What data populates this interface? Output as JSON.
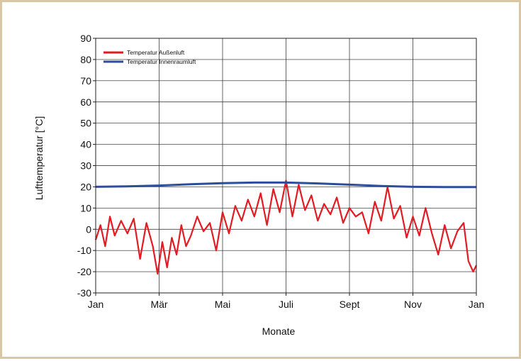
{
  "chart_data": {
    "type": "line",
    "xlabel": "Monate",
    "ylabel": "Lufttemperatur [°C]",
    "ylim": [
      -30,
      90
    ],
    "yticks": [
      -30,
      -20,
      -10,
      0,
      10,
      20,
      30,
      40,
      50,
      60,
      70,
      80,
      90
    ],
    "xlim": [
      0,
      12
    ],
    "month_ticks": [
      {
        "label": "Jan",
        "month": 0
      },
      {
        "label": "Mär",
        "month": 2
      },
      {
        "label": "Mai",
        "month": 4
      },
      {
        "label": "Juli",
        "month": 6
      },
      {
        "label": "Sept",
        "month": 8
      },
      {
        "label": "Nov",
        "month": 10
      },
      {
        "label": "Jan",
        "month": 12
      }
    ],
    "grid": true,
    "legend_position": "top-left",
    "series": [
      {
        "name": "Temperatur Außenluft",
        "color": "#e31b23",
        "x": [
          0,
          0.15,
          0.3,
          0.45,
          0.6,
          0.8,
          1.0,
          1.2,
          1.4,
          1.6,
          1.8,
          1.95,
          2.1,
          2.25,
          2.4,
          2.55,
          2.7,
          2.85,
          3.0,
          3.2,
          3.4,
          3.6,
          3.8,
          4.0,
          4.2,
          4.4,
          4.6,
          4.8,
          5.0,
          5.2,
          5.4,
          5.6,
          5.8,
          6.0,
          6.2,
          6.4,
          6.6,
          6.8,
          7.0,
          7.2,
          7.4,
          7.6,
          7.8,
          8.0,
          8.2,
          8.4,
          8.6,
          8.8,
          9.0,
          9.2,
          9.4,
          9.6,
          9.8,
          10.0,
          10.2,
          10.4,
          10.6,
          10.8,
          11.0,
          11.2,
          11.4,
          11.6,
          11.75,
          11.9,
          12.0
        ],
        "y": [
          -5,
          2,
          -8,
          6,
          -3,
          4,
          -2,
          5,
          -14,
          3,
          -8,
          -21,
          -6,
          -18,
          -4,
          -12,
          2,
          -8,
          -3,
          6,
          -1,
          3,
          -10,
          8,
          -2,
          11,
          4,
          14,
          6,
          17,
          2,
          19,
          8,
          23,
          6,
          21,
          9,
          16,
          4,
          12,
          7,
          15,
          3,
          10,
          6,
          8,
          -2,
          13,
          4,
          20,
          5,
          11,
          -4,
          6,
          -3,
          10,
          -2,
          -12,
          2,
          -9,
          -1,
          3,
          -15,
          -20,
          -17
        ]
      },
      {
        "name": "Temperatur Innenraumluft",
        "color": "#2d4e9b",
        "x": [
          0,
          1,
          2,
          3,
          4,
          5,
          6,
          7,
          8,
          9,
          10,
          11,
          12
        ],
        "y": [
          20,
          20.2,
          20.6,
          21.2,
          21.7,
          22.0,
          22.0,
          21.6,
          21.0,
          20.4,
          20.0,
          19.9,
          19.9
        ]
      }
    ]
  }
}
